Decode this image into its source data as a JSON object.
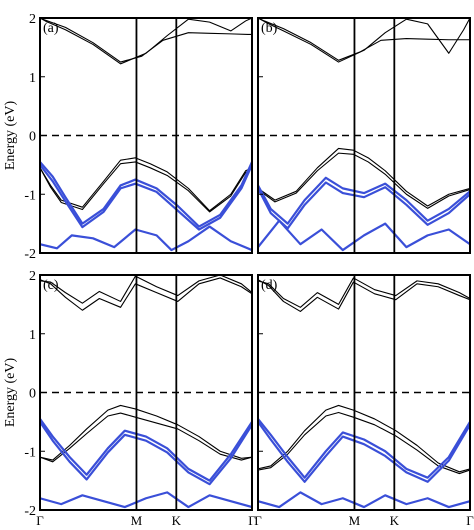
{
  "chart_data": [
    {
      "type": "line",
      "panel_label": "(a)",
      "ylabel": "Energy (eV)",
      "ylim": [
        -2,
        2
      ],
      "yticks": [
        "2",
        "1",
        "0",
        "-1",
        "-2"
      ],
      "xticks": [],
      "k_path": [
        "Γ",
        "M",
        "K",
        "Γ"
      ],
      "fermi_level": 0,
      "series": [
        {
          "color": "#000000",
          "x": [
            0,
            0.02,
            0.12,
            0.25,
            0.38,
            0.48,
            0.58,
            0.7,
            0.8,
            0.9,
            0.98,
            1
          ],
          "values": [
            2.0,
            1.97,
            1.84,
            1.58,
            1.25,
            1.35,
            1.62,
            1.75,
            1.74,
            1.73,
            1.72,
            1.72
          ]
        },
        {
          "color": "#000000",
          "x": [
            0,
            0.03,
            0.12,
            0.25,
            0.38,
            0.5,
            0.6,
            0.7,
            0.8,
            0.9,
            0.97,
            1
          ],
          "values": [
            2.0,
            1.94,
            1.8,
            1.55,
            1.22,
            1.4,
            1.7,
            1.98,
            1.93,
            1.78,
            1.95,
            2.0
          ]
        },
        {
          "color": "#000000",
          "x": [
            0,
            0.05,
            0.1,
            0.2,
            0.3,
            0.38,
            0.45,
            0.52,
            0.6,
            0.7,
            0.8,
            0.9,
            0.97,
            1
          ],
          "values": [
            -0.55,
            -0.85,
            -1.1,
            -1.22,
            -0.78,
            -0.42,
            -0.38,
            -0.48,
            -0.62,
            -0.9,
            -1.28,
            -1.0,
            -0.6,
            -0.55
          ]
        },
        {
          "color": "#000000",
          "x": [
            0,
            0.05,
            0.1,
            0.2,
            0.3,
            0.38,
            0.45,
            0.52,
            0.6,
            0.7,
            0.8,
            0.9,
            0.97,
            1
          ],
          "values": [
            -0.55,
            -0.88,
            -1.14,
            -1.26,
            -0.82,
            -0.48,
            -0.45,
            -0.55,
            -0.68,
            -0.94,
            -1.3,
            -1.03,
            -0.63,
            -0.55
          ]
        },
        {
          "color": "#3a4fd8",
          "x": [
            0,
            0.06,
            0.12,
            0.2,
            0.3,
            0.38,
            0.45,
            0.55,
            0.65,
            0.75,
            0.85,
            0.95,
            1
          ],
          "values": [
            -0.45,
            -0.7,
            -1.05,
            -1.5,
            -1.25,
            -0.85,
            -0.75,
            -0.9,
            -1.2,
            -1.55,
            -1.35,
            -0.85,
            -0.45
          ]
        },
        {
          "color": "#3a4fd8",
          "x": [
            0,
            0.06,
            0.12,
            0.2,
            0.3,
            0.38,
            0.45,
            0.55,
            0.65,
            0.75,
            0.85,
            0.95,
            1
          ],
          "values": [
            -0.5,
            -0.78,
            -1.12,
            -1.56,
            -1.3,
            -0.9,
            -0.82,
            -0.96,
            -1.28,
            -1.6,
            -1.4,
            -0.9,
            -0.5
          ]
        },
        {
          "color": "#3a4fd8",
          "x": [
            0,
            0.08,
            0.15,
            0.25,
            0.35,
            0.45,
            0.55,
            0.62,
            0.7,
            0.8,
            0.9,
            1
          ],
          "values": [
            -1.85,
            -1.92,
            -1.7,
            -1.75,
            -1.9,
            -1.6,
            -1.7,
            -1.95,
            -1.8,
            -1.55,
            -1.8,
            -1.95
          ]
        }
      ]
    },
    {
      "type": "line",
      "panel_label": "(b)",
      "ylim": [
        -2,
        2
      ],
      "xticks": [],
      "k_path": [
        "Γ",
        "M",
        "K",
        "Γ"
      ],
      "fermi_level": 0,
      "series": [
        {
          "color": "#000000",
          "x": [
            0,
            0.03,
            0.12,
            0.25,
            0.38,
            0.48,
            0.58,
            0.7,
            0.8,
            0.9,
            1
          ],
          "values": [
            2.0,
            1.95,
            1.82,
            1.58,
            1.28,
            1.42,
            1.62,
            1.65,
            1.64,
            1.63,
            1.63
          ]
        },
        {
          "color": "#000000",
          "x": [
            0,
            0.04,
            0.12,
            0.25,
            0.38,
            0.5,
            0.6,
            0.7,
            0.8,
            0.9,
            0.97,
            1
          ],
          "values": [
            2.0,
            1.92,
            1.78,
            1.55,
            1.25,
            1.45,
            1.75,
            1.98,
            1.9,
            1.4,
            1.8,
            2.0
          ]
        },
        {
          "color": "#000000",
          "x": [
            0,
            0.08,
            0.18,
            0.28,
            0.38,
            0.45,
            0.52,
            0.6,
            0.7,
            0.8,
            0.9,
            1
          ],
          "values": [
            -0.9,
            -1.1,
            -0.95,
            -0.55,
            -0.22,
            -0.25,
            -0.38,
            -0.6,
            -0.95,
            -1.2,
            -1.0,
            -0.9
          ]
        },
        {
          "color": "#000000",
          "x": [
            0,
            0.08,
            0.18,
            0.28,
            0.38,
            0.45,
            0.52,
            0.6,
            0.7,
            0.8,
            0.9,
            1
          ],
          "values": [
            -0.92,
            -1.13,
            -0.98,
            -0.6,
            -0.3,
            -0.32,
            -0.45,
            -0.66,
            -1.0,
            -1.24,
            -1.03,
            -0.92
          ]
        },
        {
          "color": "#3a4fd8",
          "x": [
            0,
            0.06,
            0.14,
            0.22,
            0.32,
            0.4,
            0.5,
            0.6,
            0.7,
            0.8,
            0.9,
            1
          ],
          "values": [
            -0.85,
            -1.25,
            -1.5,
            -1.1,
            -0.72,
            -0.9,
            -0.98,
            -0.82,
            -1.1,
            -1.45,
            -1.25,
            -0.95
          ]
        },
        {
          "color": "#3a4fd8",
          "x": [
            0,
            0.06,
            0.14,
            0.22,
            0.32,
            0.4,
            0.5,
            0.6,
            0.7,
            0.8,
            0.9,
            1
          ],
          "values": [
            -0.9,
            -1.32,
            -1.58,
            -1.18,
            -0.8,
            -0.98,
            -1.05,
            -0.88,
            -1.18,
            -1.52,
            -1.32,
            -1.0
          ]
        },
        {
          "color": "#3a4fd8",
          "x": [
            0,
            0.1,
            0.2,
            0.3,
            0.4,
            0.5,
            0.6,
            0.7,
            0.8,
            0.9,
            1
          ],
          "values": [
            -1.9,
            -1.45,
            -1.85,
            -1.6,
            -1.95,
            -1.7,
            -1.5,
            -1.9,
            -1.7,
            -1.6,
            -1.85
          ]
        }
      ]
    },
    {
      "type": "line",
      "panel_label": "(c)",
      "ylabel": "Energy (eV)",
      "ylim": [
        -2,
        2
      ],
      "yticks": [
        "2",
        "1",
        "0",
        "-1",
        "-2"
      ],
      "xticks": [
        "Γ",
        "M",
        "K",
        "Γ"
      ],
      "fermi_level": 0,
      "series": [
        {
          "color": "#000000",
          "x": [
            0,
            0.05,
            0.12,
            0.2,
            0.28,
            0.38,
            0.45,
            0.55,
            0.65,
            0.75,
            0.85,
            0.95,
            1
          ],
          "values": [
            1.9,
            1.88,
            1.7,
            1.52,
            1.72,
            1.55,
            1.98,
            1.8,
            1.65,
            1.9,
            2.0,
            1.85,
            1.7
          ]
        },
        {
          "color": "#000000",
          "x": [
            0,
            0.05,
            0.12,
            0.2,
            0.28,
            0.38,
            0.45,
            0.55,
            0.65,
            0.75,
            0.85,
            0.95,
            1
          ],
          "values": [
            1.92,
            1.85,
            1.62,
            1.4,
            1.6,
            1.45,
            1.85,
            1.7,
            1.55,
            1.85,
            1.95,
            1.8,
            1.68
          ]
        },
        {
          "color": "#000000",
          "x": [
            0,
            0.06,
            0.14,
            0.22,
            0.32,
            0.38,
            0.45,
            0.55,
            0.65,
            0.75,
            0.85,
            0.95,
            1
          ],
          "values": [
            -1.1,
            -1.15,
            -0.9,
            -0.62,
            -0.3,
            -0.22,
            -0.28,
            -0.4,
            -0.55,
            -0.75,
            -1.0,
            -1.12,
            -1.1
          ]
        },
        {
          "color": "#000000",
          "x": [
            0,
            0.06,
            0.14,
            0.22,
            0.32,
            0.38,
            0.45,
            0.55,
            0.65,
            0.75,
            0.85,
            0.95,
            1
          ],
          "values": [
            -1.1,
            -1.18,
            -0.95,
            -0.7,
            -0.4,
            -0.35,
            -0.42,
            -0.52,
            -0.62,
            -0.82,
            -1.05,
            -1.15,
            -1.1
          ]
        },
        {
          "color": "#3a4fd8",
          "x": [
            0,
            0.06,
            0.14,
            0.22,
            0.32,
            0.4,
            0.5,
            0.6,
            0.7,
            0.8,
            0.9,
            1
          ],
          "values": [
            -0.45,
            -0.75,
            -1.1,
            -1.4,
            -0.95,
            -0.65,
            -0.75,
            -0.95,
            -1.3,
            -1.5,
            -1.05,
            -0.5
          ]
        },
        {
          "color": "#3a4fd8",
          "x": [
            0,
            0.06,
            0.14,
            0.22,
            0.32,
            0.4,
            0.5,
            0.6,
            0.7,
            0.8,
            0.9,
            1
          ],
          "values": [
            -0.5,
            -0.82,
            -1.18,
            -1.48,
            -1.02,
            -0.72,
            -0.82,
            -1.02,
            -1.36,
            -1.56,
            -1.12,
            -0.55
          ]
        },
        {
          "color": "#3a4fd8",
          "x": [
            0,
            0.1,
            0.2,
            0.3,
            0.4,
            0.5,
            0.6,
            0.7,
            0.8,
            0.9,
            1
          ],
          "values": [
            -1.8,
            -1.9,
            -1.75,
            -1.85,
            -1.95,
            -1.8,
            -1.7,
            -1.95,
            -1.75,
            -1.85,
            -1.95
          ]
        }
      ]
    },
    {
      "type": "line",
      "panel_label": "(d)",
      "ylim": [
        -2,
        2
      ],
      "xticks": [
        "Γ",
        "M",
        "K",
        "Γ"
      ],
      "fermi_level": 0,
      "series": [
        {
          "color": "#000000",
          "x": [
            0,
            0.05,
            0.12,
            0.2,
            0.28,
            0.38,
            0.45,
            0.55,
            0.65,
            0.75,
            0.85,
            0.95,
            1
          ],
          "values": [
            1.9,
            1.85,
            1.6,
            1.45,
            1.7,
            1.5,
            1.95,
            1.75,
            1.65,
            1.9,
            1.85,
            1.7,
            1.6
          ]
        },
        {
          "color": "#000000",
          "x": [
            0,
            0.05,
            0.12,
            0.2,
            0.28,
            0.38,
            0.45,
            0.55,
            0.65,
            0.75,
            0.85,
            0.95,
            1
          ],
          "values": [
            1.92,
            1.82,
            1.55,
            1.38,
            1.62,
            1.42,
            1.88,
            1.68,
            1.58,
            1.85,
            1.8,
            1.65,
            1.58
          ]
        },
        {
          "color": "#000000",
          "x": [
            0,
            0.06,
            0.14,
            0.22,
            0.32,
            0.38,
            0.45,
            0.55,
            0.65,
            0.75,
            0.85,
            0.95,
            1
          ],
          "values": [
            -1.3,
            -1.25,
            -1.0,
            -0.65,
            -0.3,
            -0.22,
            -0.3,
            -0.45,
            -0.65,
            -0.9,
            -1.2,
            -1.35,
            -1.3
          ]
        },
        {
          "color": "#000000",
          "x": [
            0,
            0.06,
            0.14,
            0.22,
            0.32,
            0.38,
            0.45,
            0.55,
            0.65,
            0.75,
            0.85,
            0.95,
            1
          ],
          "values": [
            -1.32,
            -1.28,
            -1.05,
            -0.72,
            -0.4,
            -0.34,
            -0.42,
            -0.55,
            -0.74,
            -0.98,
            -1.25,
            -1.38,
            -1.32
          ]
        },
        {
          "color": "#3a4fd8",
          "x": [
            0,
            0.06,
            0.14,
            0.22,
            0.32,
            0.4,
            0.5,
            0.6,
            0.7,
            0.8,
            0.9,
            1
          ],
          "values": [
            -0.45,
            -0.72,
            -1.1,
            -1.45,
            -1.0,
            -0.68,
            -0.8,
            -1.0,
            -1.3,
            -1.45,
            -1.1,
            -0.5
          ]
        },
        {
          "color": "#3a4fd8",
          "x": [
            0,
            0.06,
            0.14,
            0.22,
            0.32,
            0.4,
            0.5,
            0.6,
            0.7,
            0.8,
            0.9,
            1
          ],
          "values": [
            -0.5,
            -0.8,
            -1.18,
            -1.52,
            -1.08,
            -0.75,
            -0.88,
            -1.08,
            -1.36,
            -1.52,
            -1.16,
            -0.55
          ]
        },
        {
          "color": "#3a4fd8",
          "x": [
            0,
            0.1,
            0.2,
            0.3,
            0.4,
            0.5,
            0.6,
            0.7,
            0.8,
            0.9,
            1
          ],
          "values": [
            -1.85,
            -1.95,
            -1.7,
            -1.9,
            -1.8,
            -1.95,
            -1.75,
            -1.9,
            -1.8,
            -1.95,
            -1.85
          ]
        }
      ]
    }
  ]
}
